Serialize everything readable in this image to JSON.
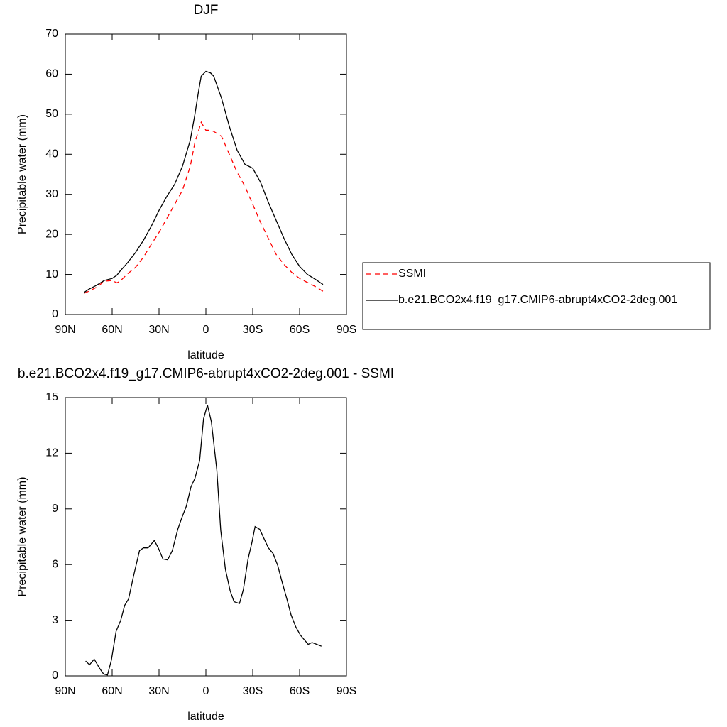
{
  "chart_data": [
    {
      "type": "line",
      "title": "DJF",
      "xlabel": "latitude",
      "ylabel": "Precipitable water (mm)",
      "x": [
        78,
        75,
        70,
        65,
        60,
        57,
        55,
        50,
        45,
        40,
        35,
        30,
        25,
        20,
        15,
        10,
        7,
        5,
        3,
        0,
        -3,
        -5,
        -10,
        -15,
        -20,
        -25,
        -30,
        -35,
        -40,
        -45,
        -50,
        -55,
        -60,
        -65,
        -70,
        -75
      ],
      "series": [
        {
          "name": "SSMI",
          "color": "#ff0000",
          "dashed": true,
          "values": [
            5.3,
            5.8,
            6.8,
            8.3,
            8.5,
            7.9,
            8.3,
            10.2,
            11.8,
            14.3,
            17.5,
            20.5,
            24,
            27.5,
            31,
            37,
            43,
            45.5,
            48,
            46,
            46,
            45.7,
            44.5,
            40,
            35.5,
            32,
            27.5,
            23,
            19,
            15,
            12.5,
            10.5,
            9,
            8,
            7,
            5.8
          ]
        },
        {
          "name": "b.e21.BCO2x4.f19_g17.CMIP6-abrupt4xCO2-2deg.001",
          "color": "#000000",
          "dashed": false,
          "values": [
            5.5,
            6.3,
            7.3,
            8.5,
            9.0,
            9.8,
            10.8,
            13.0,
            15.5,
            18.5,
            22,
            26,
            29.5,
            32.5,
            37,
            43.5,
            50,
            55,
            59.5,
            60.7,
            60.3,
            59.5,
            54,
            47,
            41,
            37.5,
            36.5,
            33,
            28,
            23.5,
            19,
            15,
            12,
            10,
            8.8,
            7.5
          ]
        }
      ],
      "xlim": [
        90,
        -90
      ],
      "xticks": [
        {
          "value": 90,
          "label": "90N"
        },
        {
          "value": 60,
          "label": "60N"
        },
        {
          "value": 30,
          "label": "30N"
        },
        0,
        {
          "value": -30,
          "label": "30S"
        },
        {
          "value": -60,
          "label": "60S"
        },
        {
          "value": -90,
          "label": "90S"
        }
      ],
      "ylim": [
        0,
        70
      ],
      "yticks": [
        0,
        10,
        20,
        30,
        40,
        50,
        60,
        70
      ],
      "legend": "right"
    },
    {
      "type": "line",
      "title": "b.e21.BCO2x4.f19_g17.CMIP6-abrupt4xCO2-2deg.001 - SSMI",
      "xlabel": "latitude",
      "ylabel": "Precipitable water (mm)",
      "x": [
        77,
        74.5,
        71.5,
        68,
        65.5,
        63,
        60.5,
        57.5,
        54.5,
        52,
        49.5,
        46,
        42.5,
        40,
        37,
        33,
        30.5,
        27.5,
        24.5,
        21.5,
        18,
        15.5,
        12.5,
        9.5,
        7,
        4,
        1.5,
        -1,
        -3.5,
        -7,
        -9.5,
        -12.5,
        -15.5,
        -18,
        -21.5,
        -24,
        -27,
        -29.5,
        -31.5,
        -34.5,
        -37.5,
        -40,
        -43,
        -46,
        -48.5,
        -52,
        -54.5,
        -57.5,
        -60.5,
        -65.5,
        -68,
        -74
      ],
      "color": "#000000",
      "values": [
        0.8,
        0.6,
        0.9,
        0.4,
        0.1,
        0.05,
        0.85,
        2.4,
        3.0,
        3.8,
        4.15,
        5.5,
        6.75,
        6.9,
        6.9,
        7.3,
        6.9,
        6.3,
        6.25,
        6.75,
        7.9,
        8.5,
        9.15,
        10.2,
        10.65,
        11.6,
        13.85,
        14.6,
        13.7,
        11.1,
        7.85,
        5.75,
        4.6,
        4.0,
        3.9,
        4.65,
        6.3,
        7.2,
        8.05,
        7.9,
        7.35,
        6.9,
        6.6,
        5.95,
        5.15,
        4.1,
        3.3,
        2.65,
        2.2,
        1.7,
        1.8,
        1.6
      ],
      "xlim": [
        90,
        -90
      ],
      "xticks": [
        {
          "value": 90,
          "label": "90N"
        },
        {
          "value": 60,
          "label": "60N"
        },
        {
          "value": 30,
          "label": "30N"
        },
        0,
        {
          "value": -30,
          "label": "30S"
        },
        {
          "value": -60,
          "label": "60S"
        },
        {
          "value": -90,
          "label": "90S"
        }
      ],
      "ylim": [
        0,
        15
      ],
      "yticks": [
        0,
        3,
        6,
        9,
        12,
        15
      ]
    }
  ]
}
